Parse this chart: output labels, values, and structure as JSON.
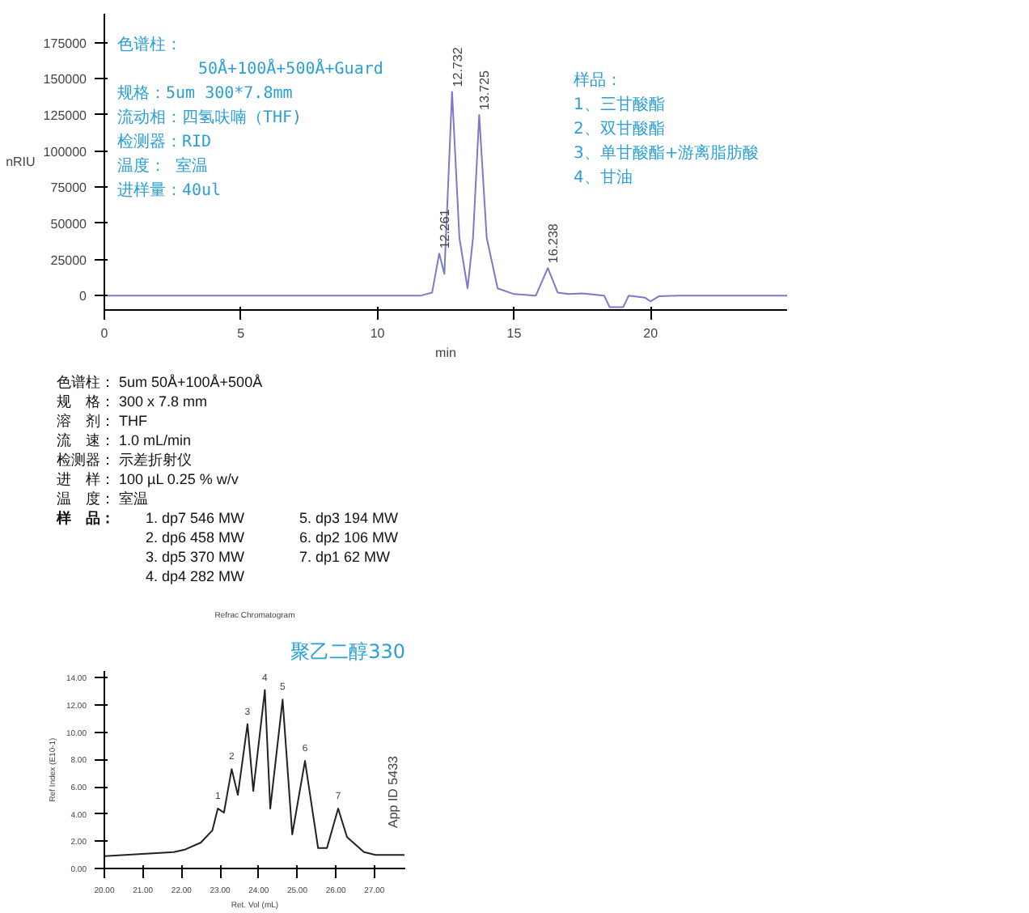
{
  "chart_data": [
    {
      "type": "line",
      "ylabel": "nRIU",
      "xlabel": "min",
      "xlim": [
        0,
        25
      ],
      "ylim": [
        -10000,
        195000
      ],
      "xticks": [
        0,
        5,
        10,
        15,
        20
      ],
      "yticks": [
        0,
        25000,
        50000,
        75000,
        100000,
        125000,
        150000,
        175000
      ],
      "marker": "none",
      "line_style": "solid",
      "x": [
        0,
        11.6,
        12.0,
        12.261,
        12.45,
        12.732,
        13.0,
        13.3,
        13.5,
        13.725,
        14.0,
        14.4,
        15.0,
        15.8,
        16.238,
        16.6,
        17.0,
        17.5,
        18.3,
        18.5,
        19.0,
        19.2,
        19.8,
        20.0,
        20.3,
        21.0,
        25.0
      ],
      "series": [
        {
          "color": "#7a7ac8",
          "values": [
            0,
            0,
            2000,
            29000,
            15000,
            141000,
            40000,
            5000,
            40000,
            125000,
            40000,
            5000,
            1000,
            0,
            19000,
            2000,
            1000,
            1500,
            0,
            -8000,
            -8000,
            0,
            -1500,
            -4000,
            -500,
            0,
            0
          ]
        }
      ],
      "annotations": [
        "色谱柱：",
        "50Å+100Å+500Å+Guard",
        "规格：5um 300*7.8mm",
        "流动相：四氢呋喃（THF)",
        "检测器：RID",
        "温度： 室温",
        "进样量：40ul",
        "样品：",
        "1、三甘酸酯",
        "2、双甘酸酯",
        "3、单甘酸酯+游离脂肪酸",
        "4、甘油",
        {
          "text": "12.261",
          "x": 12.261,
          "y": 29000
        },
        {
          "text": "12.732",
          "x": 12.732,
          "y": 141000
        },
        {
          "text": "13.725",
          "x": 13.725,
          "y": 125000
        },
        {
          "text": "16.238",
          "x": 16.238,
          "y": 19000
        }
      ]
    },
    {
      "type": "other",
      "annotations": [
        "色谱柱： 5um 50Å+100Å+500Å",
        "规　格： 300 x 7.8 mm",
        "溶　剂： THF",
        "流　速： 1.0 mL/min",
        "检测器： 示差折射仪",
        "进　样： 100 µL 0.25 % w/v",
        "温　度： 室温",
        "样　品：",
        "1. dp7 546 MW",
        "2. dp6 458 MW",
        "3. dp5 370 MW",
        "4. dp4 282 MW",
        "5. dp3 194 MW",
        "6. dp2 106 MW",
        "7. dp1 62 MW"
      ]
    },
    {
      "type": "line",
      "title": "Refrac Chromatogram",
      "subtitle": "聚乙二醇330",
      "xlabel": "Ret. Vol (mL)",
      "ylabel": "Ref Index (E10-1)",
      "xlim": [
        20,
        27.8
      ],
      "ylim": [
        0,
        14.5
      ],
      "xticks": [
        {
          "value": 20,
          "label": "20.00"
        },
        {
          "value": 21,
          "label": "21.00"
        },
        {
          "value": 22,
          "label": "22.00"
        },
        {
          "value": 23,
          "label": "23.00"
        },
        {
          "value": 24,
          "label": "24.00"
        },
        {
          "value": 25,
          "label": "25.00"
        },
        {
          "value": 26,
          "label": "26.00"
        },
        {
          "value": 27,
          "label": "27.00"
        }
      ],
      "yticks": [
        {
          "value": 0,
          "label": "0.00"
        },
        {
          "value": 2,
          "label": "2.00"
        },
        {
          "value": 4,
          "label": "4.00"
        },
        {
          "value": 6,
          "label": "6.00"
        },
        {
          "value": 8,
          "label": "8.00"
        },
        {
          "value": 10,
          "label": "10.00"
        },
        {
          "value": 12,
          "label": "12.00"
        },
        {
          "value": 14,
          "label": "14.00"
        }
      ],
      "marker": "none",
      "line_style": "solid",
      "x": [
        20.0,
        21.8,
        22.1,
        22.5,
        22.8,
        22.94,
        23.1,
        23.3,
        23.46,
        23.71,
        23.86,
        24.16,
        24.3,
        24.62,
        24.87,
        25.2,
        25.54,
        25.77,
        26.06,
        26.29,
        26.73,
        27.03,
        27.78
      ],
      "series": [
        {
          "color": "#222222",
          "values": [
            0.9,
            1.2,
            1.4,
            1.9,
            2.8,
            4.4,
            4.1,
            7.3,
            5.4,
            10.6,
            5.7,
            13.1,
            4.4,
            12.4,
            2.5,
            7.9,
            1.5,
            1.5,
            4.4,
            2.3,
            1.2,
            1.0,
            1.0
          ]
        }
      ],
      "annotations": [
        {
          "text": "1",
          "x": 22.94,
          "y": 4.4
        },
        {
          "text": "2",
          "x": 23.3,
          "y": 7.3
        },
        {
          "text": "3",
          "x": 23.71,
          "y": 10.6
        },
        {
          "text": "4",
          "x": 24.16,
          "y": 13.1
        },
        {
          "text": "5",
          "x": 24.62,
          "y": 12.4
        },
        {
          "text": "6",
          "x": 25.2,
          "y": 7.9
        },
        {
          "text": "7",
          "x": 26.06,
          "y": 4.4
        },
        "App ID 5433"
      ]
    }
  ]
}
